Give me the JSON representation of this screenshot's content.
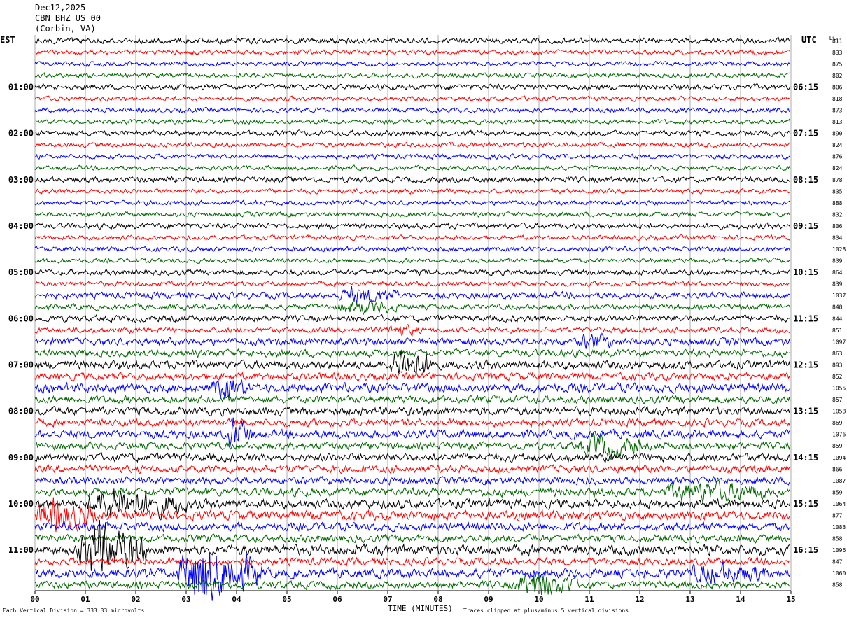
{
  "header": {
    "date": "Dec12,2025",
    "station": "CBN BHZ US 00",
    "location": "(Corbin, VA)"
  },
  "left_axis_label": "EST",
  "right_axis_label": "UTC",
  "dc_label": "DC",
  "footer": {
    "scale_note": "Each Vertical Division =  333.33 microvolts",
    "x_title": "TIME (MINUTES)",
    "clip_note": "Traces clipped at plus/minus 5 vertical divisions"
  },
  "colors": {
    "trace_cycle": [
      "#000000",
      "#ff0000",
      "#0000ff",
      "#006600"
    ],
    "grid": "#000000"
  },
  "chart_data": {
    "type": "line",
    "title": "CBN BHZ US 00 (Corbin, VA)",
    "xlabel": "TIME (MINUTES)",
    "xlim": [
      0,
      15
    ],
    "x_ticks": [
      "00",
      "01",
      "02",
      "03",
      "04",
      "05",
      "06",
      "07",
      "08",
      "09",
      "10",
      "11",
      "12",
      "13",
      "14",
      "15"
    ],
    "row_count": 48,
    "minutes_per_row": 15,
    "left_time_labels": [
      "01:00",
      "02:00",
      "03:00",
      "04:00",
      "05:00",
      "06:00",
      "07:00",
      "08:00",
      "09:00",
      "10:00",
      "11:00"
    ],
    "right_time_labels": [
      "06:15",
      "07:15",
      "08:15",
      "09:15",
      "10:15",
      "11:15",
      "12:15",
      "13:15",
      "14:15",
      "15:15",
      "16:15"
    ],
    "dc_offsets": [
      "811",
      "833",
      "875",
      "802",
      "806",
      "818",
      "873",
      "813",
      "890",
      "824",
      "876",
      "824",
      "878",
      "835",
      "888",
      "832",
      "806",
      "834",
      "1028",
      "839",
      "864",
      "839",
      "1037",
      "848",
      "844",
      "851",
      "1097",
      "863",
      "893",
      "852",
      "1055",
      "857",
      "1058",
      "869",
      "1076",
      "859",
      "1094",
      "866",
      "1087",
      "859",
      "1064",
      "877",
      "1083",
      "858",
      "1096",
      "847",
      "1060",
      "858"
    ],
    "row_amplitude": [
      0.6,
      0.5,
      0.5,
      0.5,
      0.6,
      0.5,
      0.5,
      0.5,
      0.6,
      0.5,
      0.5,
      0.5,
      0.6,
      0.5,
      0.5,
      0.5,
      0.6,
      0.5,
      0.5,
      0.5,
      0.6,
      0.5,
      0.7,
      0.6,
      0.7,
      0.6,
      0.8,
      0.8,
      0.9,
      0.8,
      1.0,
      0.8,
      0.9,
      0.8,
      0.9,
      0.8,
      0.9,
      0.8,
      0.8,
      0.9,
      1.0,
      1.0,
      0.9,
      0.8,
      1.1,
      0.8,
      1.0,
      0.8
    ],
    "events": [
      {
        "row": 22,
        "start_min": 6.0,
        "end_min": 7.2,
        "amplitude": 1.8
      },
      {
        "row": 23,
        "start_min": 6.0,
        "end_min": 7.2,
        "amplitude": 1.8
      },
      {
        "row": 25,
        "start_min": 7.0,
        "end_min": 7.6,
        "amplitude": 1.6
      },
      {
        "row": 26,
        "start_min": 10.8,
        "end_min": 11.5,
        "amplitude": 1.6
      },
      {
        "row": 28,
        "start_min": 7.0,
        "end_min": 8.0,
        "amplitude": 3.0
      },
      {
        "row": 30,
        "start_min": 3.5,
        "end_min": 4.2,
        "amplitude": 1.8
      },
      {
        "row": 34,
        "start_min": 3.8,
        "end_min": 4.3,
        "amplitude": 3.0
      },
      {
        "row": 35,
        "start_min": 10.8,
        "end_min": 12.0,
        "amplitude": 2.4
      },
      {
        "row": 39,
        "start_min": 12.5,
        "end_min": 14.5,
        "amplitude": 1.8
      },
      {
        "row": 40,
        "start_min": 1.0,
        "end_min": 3.0,
        "amplitude": 2.6
      },
      {
        "row": 41,
        "start_min": 0.0,
        "end_min": 1.2,
        "amplitude": 2.6
      },
      {
        "row": 44,
        "start_min": 0.8,
        "end_min": 2.2,
        "amplitude": 4.0
      },
      {
        "row": 46,
        "start_min": 2.8,
        "end_min": 4.5,
        "amplitude": 5.0
      },
      {
        "row": 46,
        "start_min": 13.0,
        "end_min": 14.5,
        "amplitude": 1.6
      },
      {
        "row": 47,
        "start_min": 9.5,
        "end_min": 10.8,
        "amplitude": 2.8
      }
    ]
  }
}
